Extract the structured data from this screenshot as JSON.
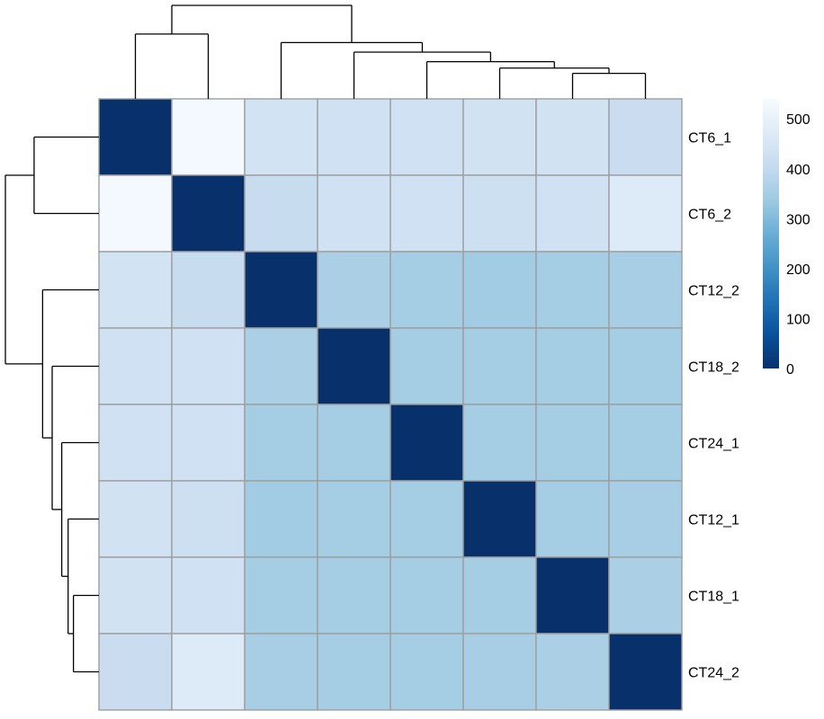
{
  "chart_data": {
    "type": "heatmap",
    "title": "",
    "xlabel": "",
    "ylabel": "",
    "row_labels": [
      "CT6_1",
      "CT6_2",
      "CT12_2",
      "CT18_2",
      "CT24_1",
      "CT12_1",
      "CT18_1",
      "CT24_2"
    ],
    "column_labels": [],
    "values": [
      [
        0,
        530,
        440,
        430,
        430,
        435,
        435,
        415
      ],
      [
        530,
        0,
        410,
        430,
        430,
        425,
        430,
        470
      ],
      [
        440,
        410,
        0,
        360,
        350,
        345,
        350,
        355
      ],
      [
        430,
        430,
        360,
        0,
        350,
        350,
        350,
        350
      ],
      [
        430,
        430,
        350,
        350,
        0,
        350,
        350,
        350
      ],
      [
        435,
        425,
        345,
        350,
        350,
        0,
        350,
        355
      ],
      [
        435,
        430,
        350,
        350,
        350,
        350,
        0,
        360
      ],
      [
        415,
        470,
        355,
        350,
        350,
        355,
        360,
        0
      ]
    ],
    "color_scale": {
      "min": 0,
      "max": 540,
      "colors": [
        "#08306b",
        "#08519c",
        "#2171b5",
        "#4292c6",
        "#6baed6",
        "#9ecae1",
        "#c6dbef",
        "#deebf7",
        "#f7fbff"
      ]
    },
    "legend": {
      "placement": "right",
      "ticks": [
        "0",
        "100",
        "200",
        "300",
        "400",
        "500"
      ]
    },
    "dendrogram": {
      "order": [
        "CT6_1",
        "CT6_2",
        "CT12_2",
        "CT18_2",
        "CT24_1",
        "CT12_1",
        "CT18_1",
        "CT24_2"
      ],
      "merges": [
        [
          -7,
          -8,
          0.24
        ],
        [
          -6,
          1,
          0.29
        ],
        [
          -5,
          2,
          0.35
        ],
        [
          -4,
          3,
          0.44
        ],
        [
          -3,
          4,
          0.53
        ],
        [
          -1,
          -2,
          0.61
        ],
        [
          6,
          5,
          0.88
        ]
      ]
    },
    "grid": true
  }
}
